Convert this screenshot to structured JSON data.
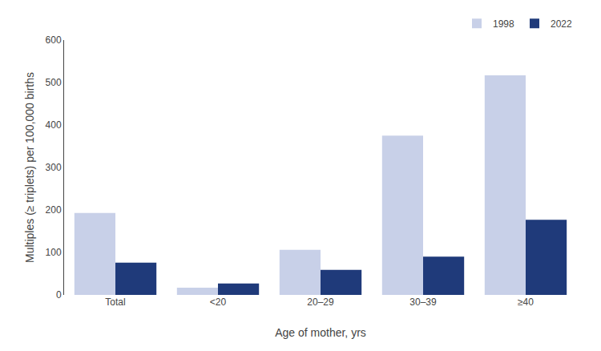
{
  "chart_data": {
    "type": "bar",
    "categories": [
      "Total",
      "<20",
      "20–29",
      "30–39",
      "≥40"
    ],
    "series": [
      {
        "name": "1998",
        "color": "#c8d0e8",
        "values": [
          193,
          17,
          106,
          375,
          517
        ]
      },
      {
        "name": "2022",
        "color": "#1f3a7a",
        "values": [
          76,
          27,
          59,
          90,
          177
        ]
      }
    ],
    "xlabel": "Age of mother, yrs",
    "ylabel": "Multiples (≥ triplets) per 100,000 births",
    "ylim": [
      0,
      600
    ],
    "yticks": [
      0,
      100,
      200,
      300,
      400,
      500,
      600
    ],
    "grid": false,
    "legend": "upper right"
  }
}
